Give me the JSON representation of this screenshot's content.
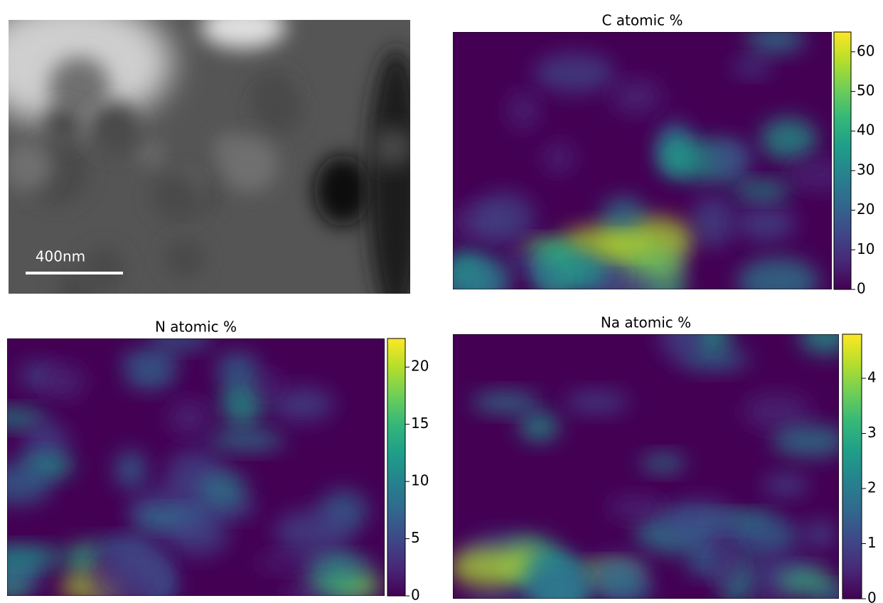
{
  "chart_data": [
    {
      "type": "image",
      "scale_bar": "400nm"
    },
    {
      "type": "heatmap",
      "title": "C atomic %",
      "colormap": "viridis",
      "ylim": [
        0,
        65
      ],
      "yticks": [
        0,
        10,
        20,
        30,
        40,
        50,
        60
      ]
    },
    {
      "type": "heatmap",
      "title": "N atomic %",
      "colormap": "viridis",
      "ylim": [
        0,
        22.5
      ],
      "yticks": [
        0,
        5,
        10,
        15,
        20
      ]
    },
    {
      "type": "heatmap",
      "title": "Na atomic %",
      "colormap": "viridis",
      "ylim": [
        0,
        4.8
      ],
      "yticks": [
        0,
        1,
        2,
        3,
        4
      ]
    }
  ]
}
